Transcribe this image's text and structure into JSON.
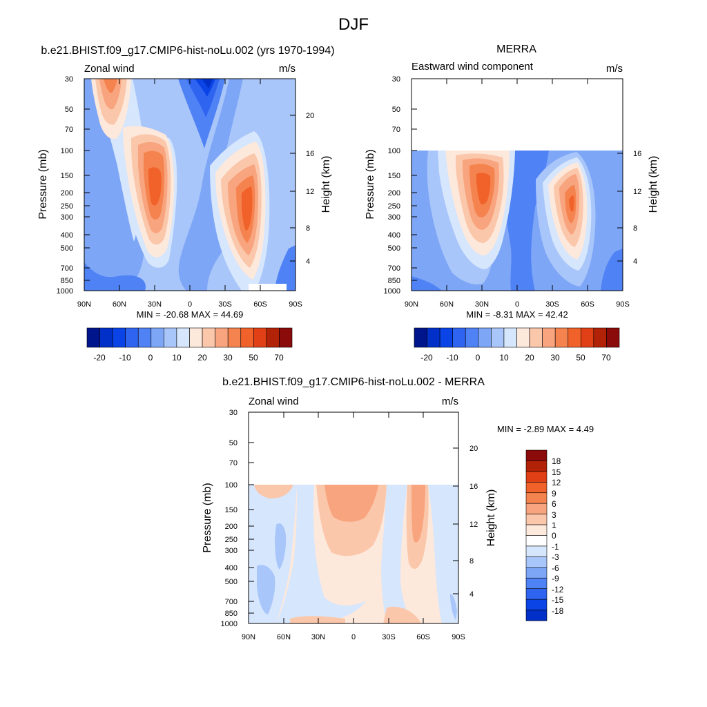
{
  "page_title": "DJF",
  "chart_data": [
    {
      "id": "model",
      "type": "heatmap",
      "title": "b.e21.BHIST.f09_g17.CMIP6-hist-noLu.002 (yrs 1970-1994)",
      "left_label": "Zonal wind",
      "right_label": "m/s",
      "ylabel": "Pressure (mb)",
      "ylabel_right": "Height (km)",
      "x_ticks": [
        "90N",
        "60N",
        "30N",
        "0",
        "30S",
        "60S",
        "90S"
      ],
      "y_ticks": [
        "30",
        "50",
        "70",
        "100",
        "150",
        "200",
        "250",
        "300",
        "400",
        "500",
        "700",
        "850",
        "1000"
      ],
      "height_ticks": [
        "20",
        "16",
        "12",
        "8",
        "4"
      ],
      "min_max_text": "MIN = -20.68  MAX =  44.69",
      "colorbar_labels": [
        "-20",
        "-10",
        "0",
        "10",
        "20",
        "30",
        "50",
        "70"
      ],
      "colorbar_colors": [
        "#00148c",
        "#0030c8",
        "#0a44e6",
        "#2e64f0",
        "#4f82f5",
        "#7ea6f7",
        "#a9c6fa",
        "#d6e6fc",
        "#fde8dc",
        "#fbc7ab",
        "#f8a47e",
        "#f5834f",
        "#f1622a",
        "#e14016",
        "#b22206",
        "#8b0a0a"
      ]
    },
    {
      "id": "obs",
      "type": "heatmap",
      "title": "MERRA",
      "left_label": "Eastward wind component",
      "right_label": "m/s",
      "ylabel": "Pressure (mb)",
      "ylabel_right": "Height (km)",
      "x_ticks": [
        "90N",
        "60N",
        "30N",
        "0",
        "30S",
        "60S",
        "90S"
      ],
      "y_ticks": [
        "30",
        "50",
        "70",
        "100",
        "150",
        "200",
        "250",
        "300",
        "400",
        "500",
        "700",
        "850",
        "1000"
      ],
      "height_ticks": [
        "16",
        "12",
        "8",
        "4"
      ],
      "min_max_text": "MIN =  -8.31  MAX =  42.42",
      "colorbar_labels": [
        "-20",
        "-10",
        "0",
        "10",
        "20",
        "30",
        "50",
        "70"
      ],
      "colorbar_colors": [
        "#00148c",
        "#0030c8",
        "#0a44e6",
        "#2e64f0",
        "#4f82f5",
        "#7ea6f7",
        "#a9c6fa",
        "#d6e6fc",
        "#fde8dc",
        "#fbc7ab",
        "#f8a47e",
        "#f5834f",
        "#f1622a",
        "#e14016",
        "#b22206",
        "#8b0a0a"
      ]
    },
    {
      "id": "diff",
      "type": "heatmap",
      "title": "b.e21.BHIST.f09_g17.CMIP6-hist-noLu.002 - MERRA",
      "left_label": "Zonal wind",
      "right_label": "m/s",
      "ylabel": "Pressure (mb)",
      "ylabel_right": "Height (km)",
      "x_ticks": [
        "90N",
        "60N",
        "30N",
        "0",
        "30S",
        "60S",
        "90S"
      ],
      "y_ticks": [
        "30",
        "50",
        "70",
        "100",
        "150",
        "200",
        "250",
        "300",
        "400",
        "500",
        "700",
        "850",
        "1000"
      ],
      "height_ticks": [
        "20",
        "16",
        "12",
        "8",
        "4"
      ],
      "min_max_text": "MIN =  -2.89  MAX =   4.49",
      "colorbar_labels": [
        "18",
        "15",
        "12",
        "9",
        "6",
        "3",
        "1",
        "0",
        "-1",
        "-3",
        "-6",
        "-9",
        "-12",
        "-15",
        "-18"
      ],
      "colorbar_colors": [
        "#8b0a0a",
        "#b22206",
        "#e14016",
        "#f1622a",
        "#f5834f",
        "#f8a47e",
        "#fbc7ab",
        "#fde8dc",
        "#ffffff",
        "#d6e6fc",
        "#a9c6fa",
        "#7ea6f7",
        "#4f82f5",
        "#2e64f0",
        "#0a44e6",
        "#0030c8"
      ]
    }
  ]
}
